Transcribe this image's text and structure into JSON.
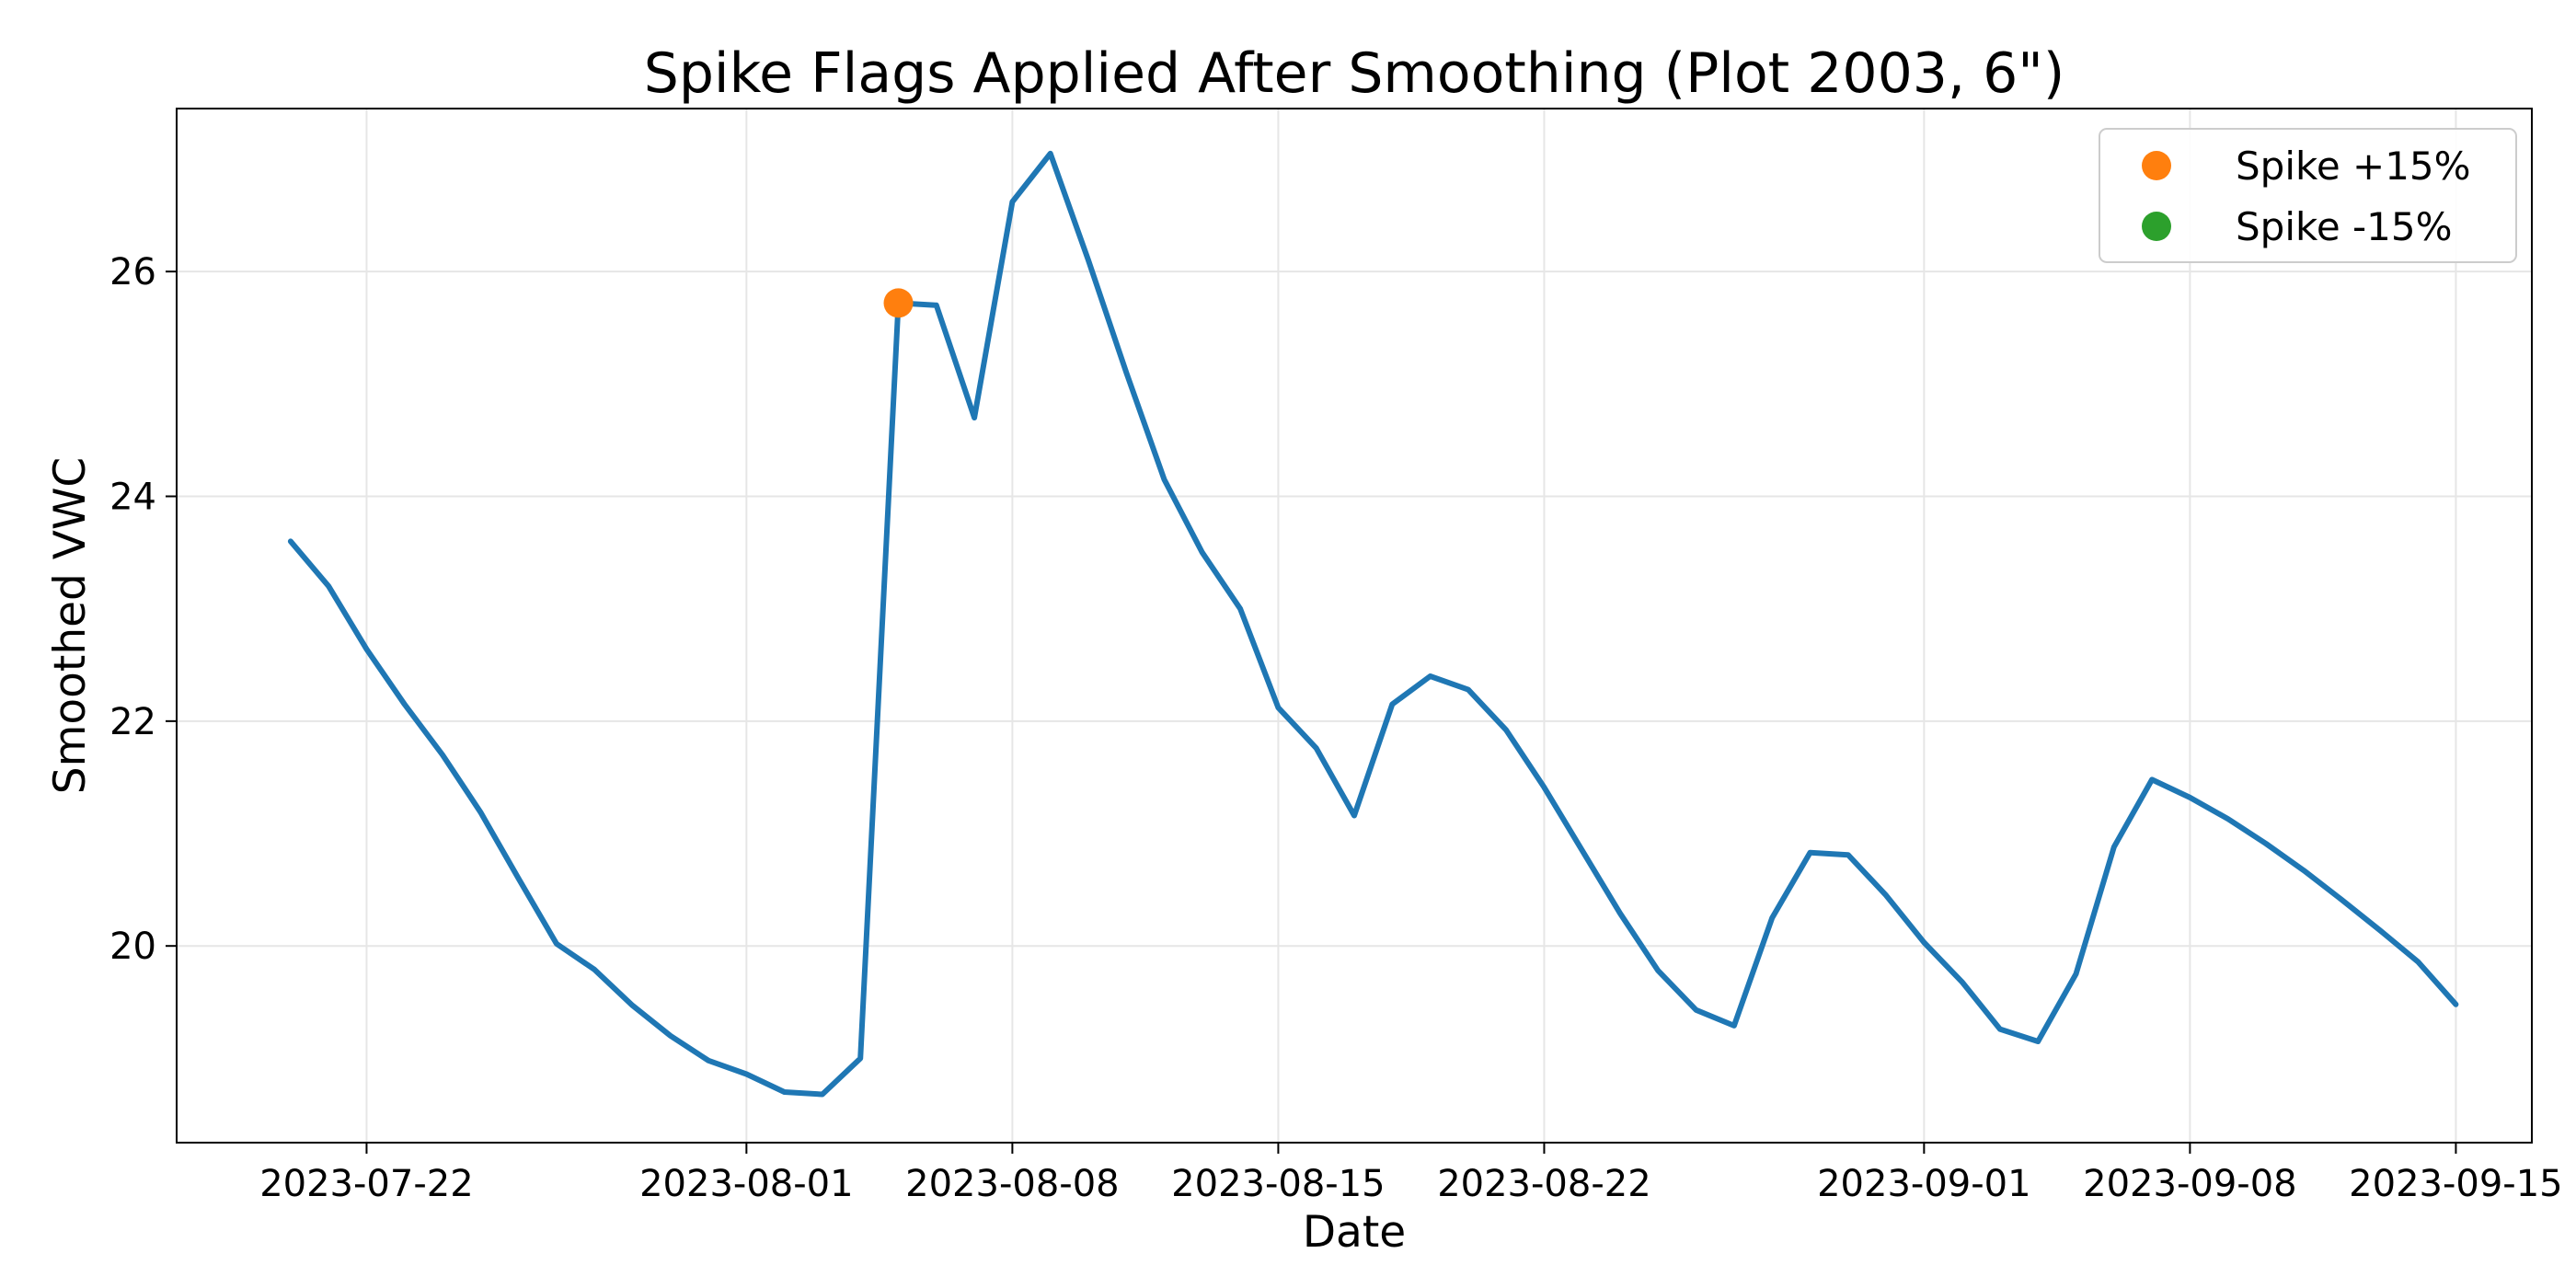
{
  "chart_data": {
    "type": "line",
    "title": "Spike Flags Applied After Smoothing (Plot 2003, 6\")",
    "xlabel": "Date",
    "ylabel": "Smoothed VWC",
    "xlim": [
      "2023-07-17",
      "2023-09-17"
    ],
    "ylim": [
      18.25,
      27.45
    ],
    "grid": true,
    "legend_position": "top-right",
    "colors": {
      "line": "#1f77b4",
      "spike_up": "#ff7f0e",
      "spike_down": "#2ca02c",
      "grid": "#e6e6e6",
      "axes": "#000000"
    },
    "x_ticks": [
      "2023-07-22",
      "2023-08-01",
      "2023-08-08",
      "2023-08-15",
      "2023-08-22",
      "2023-09-01",
      "2023-09-08",
      "2023-09-15"
    ],
    "y_ticks": [
      20,
      22,
      24,
      26
    ],
    "series": [
      {
        "x": [
          "2023-07-20",
          "2023-07-21",
          "2023-07-22",
          "2023-07-23",
          "2023-07-24",
          "2023-07-25",
          "2023-07-26",
          "2023-07-27",
          "2023-07-28",
          "2023-07-29",
          "2023-07-30",
          "2023-07-31",
          "2023-08-01",
          "2023-08-02",
          "2023-08-03",
          "2023-08-04",
          "2023-08-05",
          "2023-08-06",
          "2023-08-07",
          "2023-08-08",
          "2023-08-09",
          "2023-08-10",
          "2023-08-11",
          "2023-08-12",
          "2023-08-13",
          "2023-08-14",
          "2023-08-15",
          "2023-08-16",
          "2023-08-17",
          "2023-08-18",
          "2023-08-19",
          "2023-08-20",
          "2023-08-21",
          "2023-08-22",
          "2023-08-23",
          "2023-08-24",
          "2023-08-25",
          "2023-08-26",
          "2023-08-27",
          "2023-08-28",
          "2023-08-29",
          "2023-08-30",
          "2023-08-31",
          "2023-09-01",
          "2023-09-02",
          "2023-09-03",
          "2023-09-04",
          "2023-09-05",
          "2023-09-06",
          "2023-09-07",
          "2023-09-08",
          "2023-09-09",
          "2023-09-10",
          "2023-09-11",
          "2023-09-12",
          "2023-09-13",
          "2023-09-14",
          "2023-09-15"
        ],
        "values": [
          23.6,
          23.2,
          22.64,
          22.15,
          21.7,
          21.19,
          20.6,
          20.02,
          19.79,
          19.47,
          19.2,
          18.98,
          18.86,
          18.7,
          18.68,
          19.0,
          25.72,
          25.7,
          24.7,
          26.62,
          27.05,
          26.1,
          25.1,
          24.15,
          23.5,
          23.0,
          22.12,
          21.76,
          21.16,
          22.15,
          22.4,
          22.28,
          21.92,
          21.41,
          20.85,
          20.29,
          19.78,
          19.43,
          19.29,
          20.25,
          20.83,
          20.81,
          20.45,
          20.03,
          19.68,
          19.26,
          19.15,
          19.75,
          20.88,
          21.48,
          21.32,
          21.13,
          20.91,
          20.67,
          20.41,
          20.14,
          19.86,
          19.48
        ]
      }
    ],
    "legend": [
      {
        "label": "Spike +15%",
        "color_key": "spike_up"
      },
      {
        "label": "Spike -15%",
        "color_key": "spike_down"
      }
    ],
    "spikes_up": [
      {
        "x": "2023-08-05",
        "y": 25.72
      }
    ],
    "spikes_down": []
  }
}
